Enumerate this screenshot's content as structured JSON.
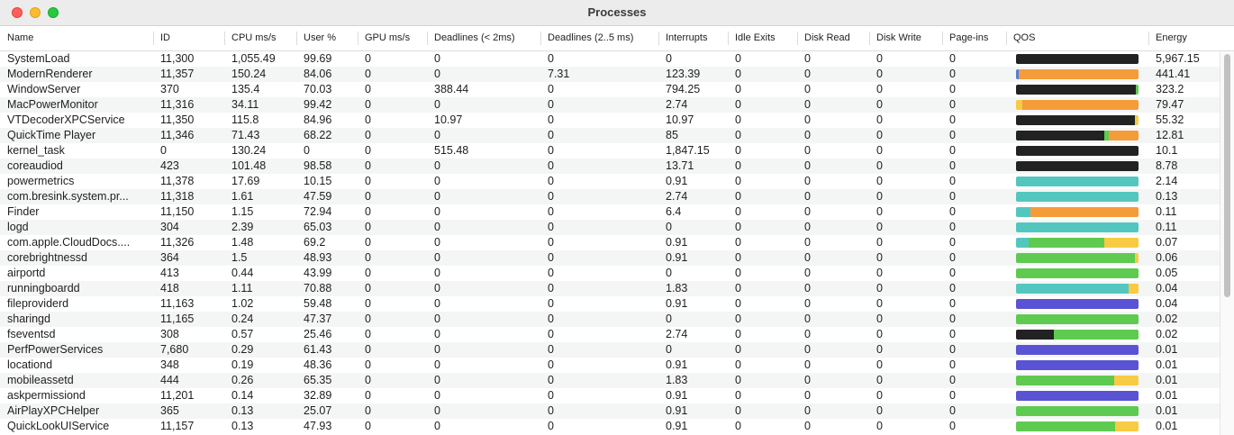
{
  "window": {
    "title": "Processes"
  },
  "columns": [
    "Name",
    "ID",
    "CPU ms/s",
    "User %",
    "GPU ms/s",
    "Deadlines (< 2ms)",
    "Deadlines (2..5 ms)",
    "Interrupts",
    "Idle Exits",
    "Disk Read",
    "Disk Write",
    "Page-ins",
    "QOS",
    "Energy"
  ],
  "qos_colors": {
    "dark": "#222222",
    "orange": "#f59c3a",
    "green": "#5ecb50",
    "teal": "#53c7bf",
    "yellow": "#f8cb45",
    "purple": "#5a53d4",
    "blue": "#4f7fe0"
  },
  "rows": [
    {
      "name": "SystemLoad",
      "id": "11,300",
      "cpu": "1,055.49",
      "user": "99.69",
      "gpu": "0",
      "dl2": "0",
      "dl25": "0",
      "interrupts": "0",
      "idle": "0",
      "dread": "0",
      "dwrite": "0",
      "pageins": "0",
      "energy": "5,967.15",
      "qos": [
        [
          "dark",
          100
        ]
      ]
    },
    {
      "name": "ModernRenderer",
      "id": "11,357",
      "cpu": "150.24",
      "user": "84.06",
      "gpu": "0",
      "dl2": "0",
      "dl25": "7.31",
      "interrupts": "123.39",
      "idle": "0",
      "dread": "0",
      "dwrite": "0",
      "pageins": "0",
      "energy": "441.41",
      "qos": [
        [
          "blue",
          2
        ],
        [
          "orange",
          98
        ]
      ]
    },
    {
      "name": "WindowServer",
      "id": "370",
      "cpu": "135.4",
      "user": "70.03",
      "gpu": "0",
      "dl2": "388.44",
      "dl25": "0",
      "interrupts": "794.25",
      "idle": "0",
      "dread": "0",
      "dwrite": "0",
      "pageins": "0",
      "energy": "323.2",
      "qos": [
        [
          "dark",
          98
        ],
        [
          "green",
          2
        ]
      ]
    },
    {
      "name": "MacPowerMonitor",
      "id": "11,316",
      "cpu": "34.11",
      "user": "99.42",
      "gpu": "0",
      "dl2": "0",
      "dl25": "0",
      "interrupts": "2.74",
      "idle": "0",
      "dread": "0",
      "dwrite": "0",
      "pageins": "0",
      "energy": "79.47",
      "qos": [
        [
          "yellow",
          5
        ],
        [
          "orange",
          95
        ]
      ]
    },
    {
      "name": "VTDecoderXPCService",
      "id": "11,350",
      "cpu": "115.8",
      "user": "84.96",
      "gpu": "0",
      "dl2": "10.97",
      "dl25": "0",
      "interrupts": "10.97",
      "idle": "0",
      "dread": "0",
      "dwrite": "0",
      "pageins": "0",
      "energy": "55.32",
      "qos": [
        [
          "dark",
          97
        ],
        [
          "yellow",
          3
        ]
      ]
    },
    {
      "name": "QuickTime Player",
      "id": "11,346",
      "cpu": "71.43",
      "user": "68.22",
      "gpu": "0",
      "dl2": "0",
      "dl25": "0",
      "interrupts": "85",
      "idle": "0",
      "dread": "0",
      "dwrite": "0",
      "pageins": "0",
      "energy": "12.81",
      "qos": [
        [
          "dark",
          72
        ],
        [
          "green",
          4
        ],
        [
          "orange",
          24
        ]
      ]
    },
    {
      "name": "kernel_task",
      "id": "0",
      "cpu": "130.24",
      "user": "0",
      "gpu": "0",
      "dl2": "515.48",
      "dl25": "0",
      "interrupts": "1,847.15",
      "idle": "0",
      "dread": "0",
      "dwrite": "0",
      "pageins": "0",
      "energy": "10.1",
      "qos": [
        [
          "dark",
          100
        ]
      ]
    },
    {
      "name": "coreaudiod",
      "id": "423",
      "cpu": "101.48",
      "user": "98.58",
      "gpu": "0",
      "dl2": "0",
      "dl25": "0",
      "interrupts": "13.71",
      "idle": "0",
      "dread": "0",
      "dwrite": "0",
      "pageins": "0",
      "energy": "8.78",
      "qos": [
        [
          "dark",
          100
        ]
      ]
    },
    {
      "name": "powermetrics",
      "id": "11,378",
      "cpu": "17.69",
      "user": "10.15",
      "gpu": "0",
      "dl2": "0",
      "dl25": "0",
      "interrupts": "0.91",
      "idle": "0",
      "dread": "0",
      "dwrite": "0",
      "pageins": "0",
      "energy": "2.14",
      "qos": [
        [
          "teal",
          100
        ]
      ]
    },
    {
      "name": "com.bresink.system.pr...",
      "id": "11,318",
      "cpu": "1.61",
      "user": "47.59",
      "gpu": "0",
      "dl2": "0",
      "dl25": "0",
      "interrupts": "2.74",
      "idle": "0",
      "dread": "0",
      "dwrite": "0",
      "pageins": "0",
      "energy": "0.13",
      "qos": [
        [
          "teal",
          100
        ]
      ]
    },
    {
      "name": "Finder",
      "id": "11,150",
      "cpu": "1.15",
      "user": "72.94",
      "gpu": "0",
      "dl2": "0",
      "dl25": "0",
      "interrupts": "6.4",
      "idle": "0",
      "dread": "0",
      "dwrite": "0",
      "pageins": "0",
      "energy": "0.11",
      "qos": [
        [
          "teal",
          12
        ],
        [
          "orange",
          88
        ]
      ]
    },
    {
      "name": "logd",
      "id": "304",
      "cpu": "2.39",
      "user": "65.03",
      "gpu": "0",
      "dl2": "0",
      "dl25": "0",
      "interrupts": "0",
      "idle": "0",
      "dread": "0",
      "dwrite": "0",
      "pageins": "0",
      "energy": "0.11",
      "qos": [
        [
          "teal",
          100
        ]
      ]
    },
    {
      "name": "com.apple.CloudDocs....",
      "id": "11,326",
      "cpu": "1.48",
      "user": "69.2",
      "gpu": "0",
      "dl2": "0",
      "dl25": "0",
      "interrupts": "0.91",
      "idle": "0",
      "dread": "0",
      "dwrite": "0",
      "pageins": "0",
      "energy": "0.07",
      "qos": [
        [
          "teal",
          10
        ],
        [
          "green",
          62
        ],
        [
          "yellow",
          28
        ]
      ]
    },
    {
      "name": "corebrightnessd",
      "id": "364",
      "cpu": "1.5",
      "user": "48.93",
      "gpu": "0",
      "dl2": "0",
      "dl25": "0",
      "interrupts": "0.91",
      "idle": "0",
      "dread": "0",
      "dwrite": "0",
      "pageins": "0",
      "energy": "0.06",
      "qos": [
        [
          "green",
          97
        ],
        [
          "yellow",
          3
        ]
      ]
    },
    {
      "name": "airportd",
      "id": "413",
      "cpu": "0.44",
      "user": "43.99",
      "gpu": "0",
      "dl2": "0",
      "dl25": "0",
      "interrupts": "0",
      "idle": "0",
      "dread": "0",
      "dwrite": "0",
      "pageins": "0",
      "energy": "0.05",
      "qos": [
        [
          "green",
          100
        ]
      ]
    },
    {
      "name": "runningboardd",
      "id": "418",
      "cpu": "1.11",
      "user": "70.88",
      "gpu": "0",
      "dl2": "0",
      "dl25": "0",
      "interrupts": "1.83",
      "idle": "0",
      "dread": "0",
      "dwrite": "0",
      "pageins": "0",
      "energy": "0.04",
      "qos": [
        [
          "teal",
          92
        ],
        [
          "yellow",
          8
        ]
      ]
    },
    {
      "name": "fileproviderd",
      "id": "11,163",
      "cpu": "1.02",
      "user": "59.48",
      "gpu": "0",
      "dl2": "0",
      "dl25": "0",
      "interrupts": "0.91",
      "idle": "0",
      "dread": "0",
      "dwrite": "0",
      "pageins": "0",
      "energy": "0.04",
      "qos": [
        [
          "purple",
          100
        ]
      ]
    },
    {
      "name": "sharingd",
      "id": "11,165",
      "cpu": "0.24",
      "user": "47.37",
      "gpu": "0",
      "dl2": "0",
      "dl25": "0",
      "interrupts": "0",
      "idle": "0",
      "dread": "0",
      "dwrite": "0",
      "pageins": "0",
      "energy": "0.02",
      "qos": [
        [
          "green",
          100
        ]
      ]
    },
    {
      "name": "fseventsd",
      "id": "308",
      "cpu": "0.57",
      "user": "25.46",
      "gpu": "0",
      "dl2": "0",
      "dl25": "0",
      "interrupts": "2.74",
      "idle": "0",
      "dread": "0",
      "dwrite": "0",
      "pageins": "0",
      "energy": "0.02",
      "qos": [
        [
          "dark",
          31
        ],
        [
          "green",
          69
        ]
      ]
    },
    {
      "name": "PerfPowerServices",
      "id": "7,680",
      "cpu": "0.29",
      "user": "61.43",
      "gpu": "0",
      "dl2": "0",
      "dl25": "0",
      "interrupts": "0",
      "idle": "0",
      "dread": "0",
      "dwrite": "0",
      "pageins": "0",
      "energy": "0.01",
      "qos": [
        [
          "purple",
          100
        ]
      ]
    },
    {
      "name": "locationd",
      "id": "348",
      "cpu": "0.19",
      "user": "48.36",
      "gpu": "0",
      "dl2": "0",
      "dl25": "0",
      "interrupts": "0.91",
      "idle": "0",
      "dread": "0",
      "dwrite": "0",
      "pageins": "0",
      "energy": "0.01",
      "qos": [
        [
          "purple",
          100
        ]
      ]
    },
    {
      "name": "mobileassetd",
      "id": "444",
      "cpu": "0.26",
      "user": "65.35",
      "gpu": "0",
      "dl2": "0",
      "dl25": "0",
      "interrupts": "1.83",
      "idle": "0",
      "dread": "0",
      "dwrite": "0",
      "pageins": "0",
      "energy": "0.01",
      "qos": [
        [
          "green",
          80
        ],
        [
          "yellow",
          20
        ]
      ]
    },
    {
      "name": "askpermissiond",
      "id": "11,201",
      "cpu": "0.14",
      "user": "32.89",
      "gpu": "0",
      "dl2": "0",
      "dl25": "0",
      "interrupts": "0.91",
      "idle": "0",
      "dread": "0",
      "dwrite": "0",
      "pageins": "0",
      "energy": "0.01",
      "qos": [
        [
          "purple",
          100
        ]
      ]
    },
    {
      "name": "AirPlayXPCHelper",
      "id": "365",
      "cpu": "0.13",
      "user": "25.07",
      "gpu": "0",
      "dl2": "0",
      "dl25": "0",
      "interrupts": "0.91",
      "idle": "0",
      "dread": "0",
      "dwrite": "0",
      "pageins": "0",
      "energy": "0.01",
      "qos": [
        [
          "green",
          100
        ]
      ]
    },
    {
      "name": "QuickLookUIService",
      "id": "11,157",
      "cpu": "0.13",
      "user": "47.93",
      "gpu": "0",
      "dl2": "0",
      "dl25": "0",
      "interrupts": "0.91",
      "idle": "0",
      "dread": "0",
      "dwrite": "0",
      "pageins": "0",
      "energy": "0.01",
      "qos": [
        [
          "green",
          81
        ],
        [
          "yellow",
          19
        ]
      ]
    }
  ]
}
